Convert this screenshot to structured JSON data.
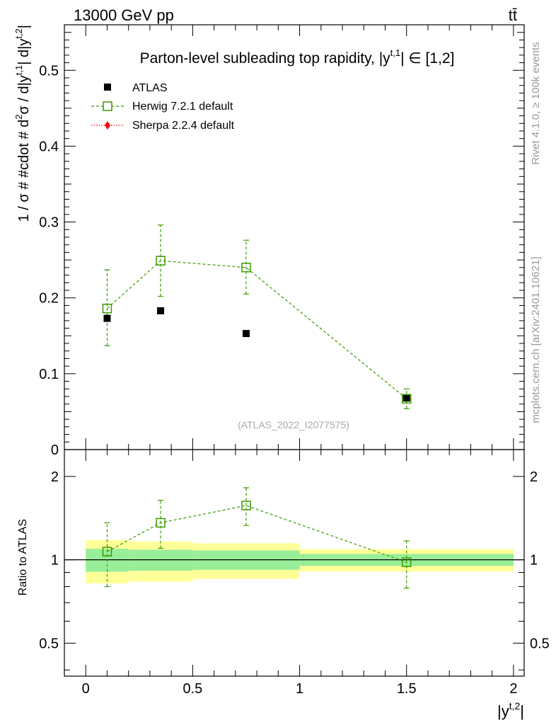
{
  "header": {
    "energy_label": "13000 GeV pp",
    "process_label": "tt̄"
  },
  "side_text": {
    "rivet": "Rivet 4.1.0, ≥ 100k events",
    "mcplots": "mcplots.cern.ch [arXiv:2401.10621]"
  },
  "chart_data": [
    {
      "type": "scatter",
      "panel": "main",
      "title": "Parton-level subleading top rapidity, |y^{t,1}| ∈ [1,2]",
      "title_parts": {
        "main": "Parton-level subleading top rapidity, |y",
        "sup": "t,1",
        "tail": "| ∈ [1,2]"
      },
      "ylabel": "1 / σ # #cdot # d²σ / d|y^{t,1}| d|y^{t,2}|",
      "ylabel_parts": {
        "a": "1 / σ # #cdot # d",
        "sup1": "2",
        "b": "σ / d|y",
        "sup2": "t,1",
        "c": "| d|y",
        "sup3": "t,2",
        "d": "|"
      },
      "watermark": "(ATLAS_2022_I2077575)",
      "xlim": [
        -0.1,
        2.05
      ],
      "ylim": [
        0,
        0.56
      ],
      "y_ticks": [
        0,
        0.1,
        0.2,
        0.3,
        0.4,
        0.5
      ],
      "y_tick_labels": [
        "0",
        "0.1",
        "0.2",
        "0.3",
        "0.4",
        "0.5"
      ],
      "legend_position": "top-left",
      "series": [
        {
          "name": "ATLAS",
          "marker": "filled-square",
          "color": "#000000",
          "x": [
            0.1,
            0.35,
            0.75,
            1.5
          ],
          "y": [
            0.173,
            0.183,
            0.153,
            0.068
          ]
        },
        {
          "name": "Herwig 7.2.1 default",
          "marker": "open-square",
          "line": "dashed",
          "color": "#3a9a00",
          "x": [
            0.1,
            0.35,
            0.75,
            1.5
          ],
          "y": [
            0.186,
            0.249,
            0.24,
            0.067
          ],
          "err_low": [
            0.137,
            0.202,
            0.205,
            0.054
          ],
          "err_high": [
            0.237,
            0.296,
            0.276,
            0.08
          ]
        },
        {
          "name": "Sherpa 2.2.4 default",
          "marker": "filled-diamond",
          "line": "dotted",
          "color": "#ff0000",
          "x": [],
          "y": []
        }
      ]
    },
    {
      "type": "scatter",
      "panel": "ratio",
      "ylabel": "Ratio to ATLAS",
      "xlabel": "|y^{t,2}|",
      "xlabel_parts": {
        "main": "|y",
        "sup": "t,2",
        "tail": "|"
      },
      "xlim": [
        -0.1,
        2.05
      ],
      "ylim": [
        0.38,
        2.5
      ],
      "x_ticks": [
        0,
        0.5,
        1,
        1.5,
        2
      ],
      "x_tick_labels": [
        "0",
        "0.5",
        "1",
        "1.5",
        "2"
      ],
      "y_ticks": [
        0.5,
        1,
        2
      ],
      "y_tick_labels": [
        "0.5",
        "1",
        "2"
      ],
      "bands": [
        {
          "x_range": [
            0.0,
            0.2
          ],
          "stat_low": 0.905,
          "stat_high": 1.095,
          "tot_low": 0.822,
          "tot_high": 1.178
        },
        {
          "x_range": [
            0.2,
            0.5
          ],
          "stat_low": 0.913,
          "stat_high": 1.087,
          "tot_low": 0.835,
          "tot_high": 1.165
        },
        {
          "x_range": [
            0.5,
            1.0
          ],
          "stat_low": 0.92,
          "stat_high": 1.08,
          "tot_low": 0.853,
          "tot_high": 1.147
        },
        {
          "x_range": [
            1.0,
            2.0
          ],
          "stat_low": 0.95,
          "stat_high": 1.05,
          "tot_low": 0.908,
          "tot_high": 1.092
        }
      ],
      "series": [
        {
          "name": "Herwig 7.2.1 default",
          "marker": "open-square",
          "line": "dashed",
          "color": "#3a9a00",
          "x": [
            0.1,
            0.35,
            0.75,
            1.5
          ],
          "y": [
            1.07,
            1.36,
            1.57,
            0.98
          ],
          "err_low": [
            0.8,
            1.1,
            1.33,
            0.79
          ],
          "err_high": [
            1.36,
            1.64,
            1.82,
            1.17
          ]
        }
      ],
      "band_colors": {
        "stat": "#99ee99",
        "total": "#ffff99"
      }
    }
  ]
}
